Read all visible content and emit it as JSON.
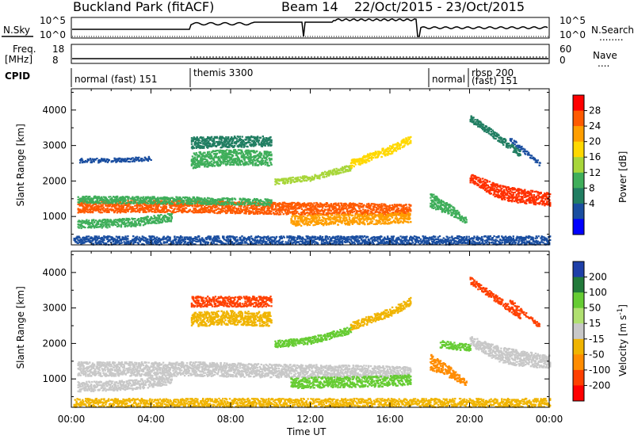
{
  "header": {
    "title": "Buckland Park (fitACF)",
    "beam": "Beam 14",
    "date_range": "22/Oct/2015 - 23/Oct/2015"
  },
  "panels": {
    "nsky": {
      "label": "N.Sky",
      "left_ticks": [
        "10^5",
        "10^0"
      ],
      "right_ticks": [
        "10^5",
        "10^0"
      ],
      "right_label": "N.Search",
      "right_label_dots": "........"
    },
    "freq": {
      "label_line1": "Freq.",
      "label_line2": "[MHz]",
      "left_ticks": [
        "18",
        "8"
      ],
      "right_ticks": [
        "60",
        "0"
      ],
      "right_label": "Nave",
      "right_label_dots": "...."
    },
    "cpid": {
      "label": "CPID",
      "segments": [
        {
          "text": "normal (fast) 151"
        },
        {
          "text": "themis 3300"
        },
        {
          "text": "normal"
        },
        {
          "text": "rbsp 200"
        },
        {
          "text": "(fast) 151"
        }
      ]
    }
  },
  "colorbars": {
    "power": {
      "title": "Power [dB]",
      "ticks": [
        "28",
        "24",
        "20",
        "16",
        "12",
        "8",
        "4"
      ],
      "colors": [
        "#ff0000",
        "#ff5a00",
        "#ff9e00",
        "#ffd800",
        "#a8d63a",
        "#3fae5a",
        "#217e62",
        "#1a4ea0",
        "#0000ff"
      ]
    },
    "velocity": {
      "title": "Velocity [m s",
      "title_sup": "-1",
      "title_close": "]",
      "ticks": [
        "200",
        "100",
        "50",
        "15",
        "-15",
        "-50",
        "-100",
        "-200"
      ],
      "colors": [
        "#1e3fa8",
        "#227a3a",
        "#66cc33",
        "#b0e070",
        "#c8c8c8",
        "#f0b400",
        "#ff8c00",
        "#ff4000",
        "#ff0000"
      ]
    }
  },
  "chart_data": [
    {
      "type": "heatmap",
      "name": "power",
      "ylabel": "Slant Range [km]",
      "xlabel": "Time UT",
      "x_ticks": [
        "00:00",
        "04:00",
        "08:00",
        "12:00",
        "16:00",
        "20:00",
        "00:00"
      ],
      "y_ticks": [
        1000,
        2000,
        3000,
        4000
      ],
      "xlim": [
        0,
        24
      ],
      "ylim": [
        200,
        4600
      ],
      "bands": [
        {
          "t": [
            0.3,
            6,
            10,
            14,
            17
          ],
          "r": [
            1300,
            1300,
            1250,
            1230,
            1200
          ],
          "w": [
            170,
            170,
            170,
            170,
            160
          ],
          "color": "#ff5a00"
        },
        {
          "t": [
            0.3,
            6,
            10
          ],
          "r": [
            1500,
            1470,
            1420
          ],
          "w": [
            100,
            100,
            90
          ],
          "color": "#3fae5a"
        },
        {
          "t": [
            0.3,
            3,
            5
          ],
          "r": [
            800,
            850,
            1000
          ],
          "w": [
            120,
            120,
            120
          ],
          "color": "#3fae5a"
        },
        {
          "t": [
            0.4,
            2,
            4
          ],
          "r": [
            2600,
            2600,
            2650
          ],
          "w": [
            60,
            60,
            60
          ],
          "color": "#1a4ea0"
        },
        {
          "t": [
            6,
            8,
            10
          ],
          "r": [
            2600,
            2700,
            2650
          ],
          "w": [
            220,
            220,
            200
          ],
          "color": "#3fae5a"
        },
        {
          "t": [
            6,
            10
          ],
          "r": [
            3100,
            3150
          ],
          "w": [
            160,
            150
          ],
          "color": "#217e62"
        },
        {
          "t": [
            10.2,
            12,
            14
          ],
          "r": [
            2000,
            2100,
            2400
          ],
          "w": [
            80,
            80,
            80
          ],
          "color": "#a8d63a"
        },
        {
          "t": [
            14,
            16,
            17
          ],
          "r": [
            2500,
            2900,
            3200
          ],
          "w": [
            110,
            120,
            110
          ],
          "color": "#ffd800"
        },
        {
          "t": [
            11,
            13,
            15.5,
            17
          ],
          "r": [
            900,
            930,
            950,
            1000
          ],
          "w": [
            150,
            150,
            150,
            140
          ],
          "color": "#ff9e00"
        },
        {
          "t": [
            18,
            19,
            19.8
          ],
          "r": [
            1500,
            1200,
            900
          ],
          "w": [
            220,
            150,
            80
          ],
          "color": "#3fae5a"
        },
        {
          "t": [
            20,
            21.5,
            22.5,
            24
          ],
          "r": [
            2100,
            1700,
            1600,
            1500
          ],
          "w": [
            120,
            200,
            200,
            180
          ],
          "color": "#ff3000"
        },
        {
          "t": [
            20,
            21.5,
            22.5
          ],
          "r": [
            3800,
            3200,
            2800
          ],
          "w": [
            100,
            100,
            100
          ],
          "color": "#217e62"
        },
        {
          "t": [
            22,
            23.5
          ],
          "r": [
            3200,
            2500
          ],
          "w": [
            70,
            60
          ],
          "color": "#1a4ea0"
        },
        {
          "t": [
            0.1,
            12,
            24
          ],
          "r": [
            350,
            350,
            350
          ],
          "w": [
            120,
            120,
            120
          ],
          "color": "#1a4ea0"
        }
      ]
    },
    {
      "type": "heatmap",
      "name": "velocity",
      "ylabel": "Slant Range [km]",
      "xlabel": "Time UT",
      "x_ticks": [
        "00:00",
        "04:00",
        "08:00",
        "12:00",
        "16:00",
        "20:00",
        "00:00"
      ],
      "y_ticks": [
        1000,
        2000,
        3000,
        4000
      ],
      "xlim": [
        0,
        24
      ],
      "ylim": [
        200,
        4600
      ],
      "bands": [
        {
          "t": [
            0.3,
            6,
            10,
            14,
            17
          ],
          "r": [
            1300,
            1300,
            1250,
            1230,
            1200
          ],
          "w": [
            200,
            200,
            190,
            180,
            160
          ],
          "color": "#c8c8c8"
        },
        {
          "t": [
            0.3,
            3,
            5
          ],
          "r": [
            800,
            850,
            1000
          ],
          "w": [
            140,
            140,
            140
          ],
          "color": "#c8c8c8"
        },
        {
          "t": [
            6,
            8,
            10
          ],
          "r": [
            2700,
            2750,
            2700
          ],
          "w": [
            200,
            200,
            200
          ],
          "color": "#f0b400"
        },
        {
          "t": [
            6,
            10
          ],
          "r": [
            3200,
            3200
          ],
          "w": [
            150,
            150
          ],
          "color": "#ff4000"
        },
        {
          "t": [
            10.2,
            12,
            14
          ],
          "r": [
            2000,
            2100,
            2400
          ],
          "w": [
            100,
            100,
            100
          ],
          "color": "#66cc33"
        },
        {
          "t": [
            14,
            16,
            17
          ],
          "r": [
            2500,
            2900,
            3200
          ],
          "w": [
            110,
            120,
            110
          ],
          "color": "#f0b400"
        },
        {
          "t": [
            11,
            13,
            15.5,
            17
          ],
          "r": [
            900,
            930,
            950,
            1000
          ],
          "w": [
            150,
            150,
            150,
            140
          ],
          "color": "#66cc33"
        },
        {
          "t": [
            18,
            19,
            19.8
          ],
          "r": [
            1500,
            1200,
            900
          ],
          "w": [
            220,
            150,
            80
          ],
          "color": "#ff8c00"
        },
        {
          "t": [
            18.5,
            20
          ],
          "r": [
            2000,
            1900
          ],
          "w": [
            100,
            100
          ],
          "color": "#66cc33"
        },
        {
          "t": [
            20,
            21.5,
            22.5,
            24
          ],
          "r": [
            2100,
            1700,
            1600,
            1500
          ],
          "w": [
            140,
            220,
            220,
            180
          ],
          "color": "#c8c8c8"
        },
        {
          "t": [
            20,
            21.5,
            22.5
          ],
          "r": [
            3800,
            3200,
            2800
          ],
          "w": [
            100,
            100,
            100
          ],
          "color": "#ff4000"
        },
        {
          "t": [
            22,
            23.5
          ],
          "r": [
            3200,
            2500
          ],
          "w": [
            70,
            60
          ],
          "color": "#ff4000"
        },
        {
          "t": [
            0.1,
            12,
            24
          ],
          "r": [
            350,
            350,
            350
          ],
          "w": [
            120,
            120,
            120
          ],
          "color": "#f0b400"
        }
      ]
    }
  ]
}
